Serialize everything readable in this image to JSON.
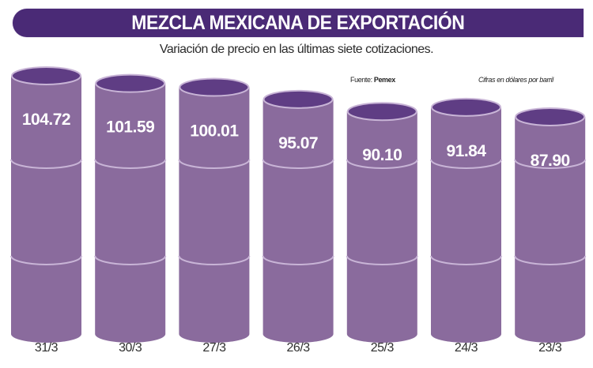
{
  "header": {
    "title": "MEZCLA MEXICANA DE EXPORTACIÓN",
    "subtitle": "Variación de precio en las últimas siete cotizaciones.",
    "source_label": "Fuente:",
    "source_value": "Pemex",
    "units": "Cifras en dólares por barril"
  },
  "colors": {
    "header_bg": "#4a2a76",
    "cylinder_body": "#8a6b9d",
    "cylinder_top": "#5f3d84",
    "band_line": "#c8b4d6"
  },
  "chart_data": {
    "type": "bar",
    "title": "MEZCLA MEXICANA DE EXPORTACIÓN",
    "subtitle": "Variación de precio en las últimas siete cotizaciones.",
    "xlabel": "",
    "ylabel": "Cifras en dólares por barril",
    "source": "Fuente: Pemex",
    "categories": [
      "31/3",
      "30/3",
      "27/3",
      "26/3",
      "25/3",
      "24/3",
      "23/3"
    ],
    "values": [
      104.72,
      101.59,
      100.01,
      95.07,
      90.1,
      91.84,
      87.9
    ],
    "labels": [
      "104.72",
      "101.59",
      "100.01",
      "95.07",
      "90.10",
      "91.84",
      "87.90"
    ],
    "grid": false,
    "legend": "none",
    "style": "cylinder"
  }
}
